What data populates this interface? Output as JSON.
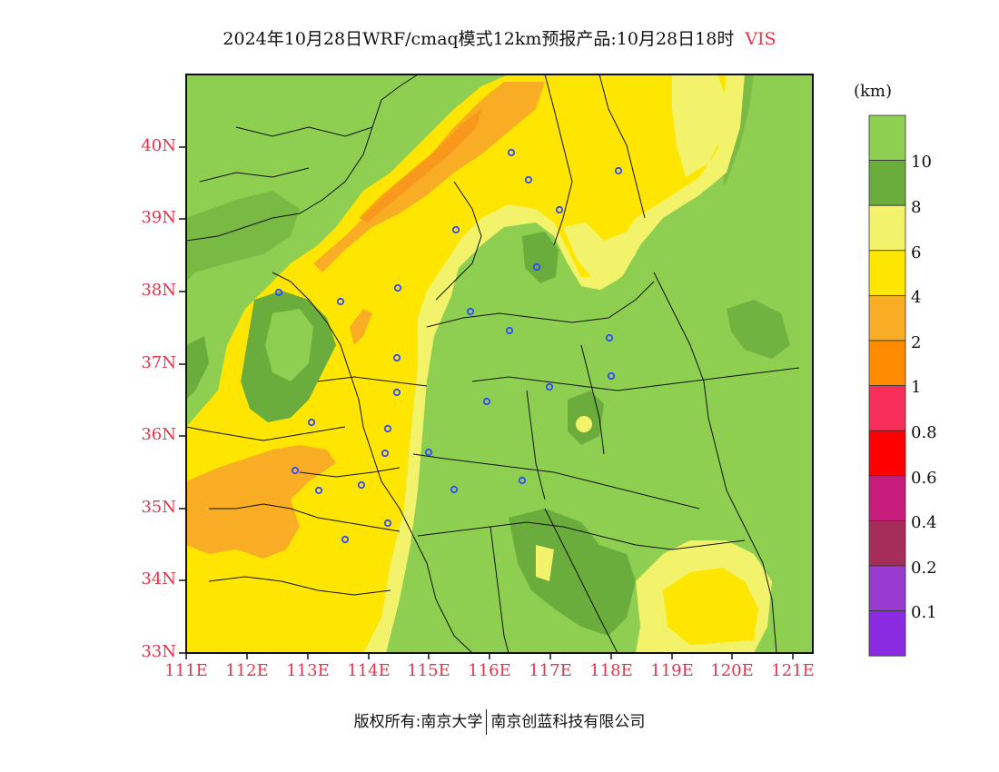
{
  "title": {
    "text": "2024年10月28日WRF/cmaq模式12km预报产品:10月28日18时",
    "variable": "VIS"
  },
  "axes": {
    "lat_labels": [
      "40N",
      "39N",
      "38N",
      "37N",
      "36N",
      "35N",
      "34N",
      "33N"
    ],
    "lon_labels": [
      "111E",
      "112E",
      "113E",
      "114E",
      "115E",
      "116E",
      "117E",
      "118E",
      "119E",
      "120E",
      "121E"
    ]
  },
  "colorbar": {
    "unit": "(km)",
    "levels": [
      "10",
      "8",
      "6",
      "4",
      "2",
      "1",
      "0.8",
      "0.6",
      "0.4",
      "0.2",
      "0.1"
    ],
    "colors": [
      "#8ece50",
      "#6aad3c",
      "#f2f36a",
      "#ffe600",
      "#f9ad24",
      "#ff8c00",
      "#f72f5a",
      "#ff0000",
      "#c81c7c",
      "#a62c5a",
      "#9a3bd0",
      "#8a2be2"
    ]
  },
  "legend_colors": {
    "over10": "#8ece50",
    "8to10": "#6aad3c",
    "6to8": "#f2f36a",
    "4to6": "#ffe600",
    "2to4": "#f9ad24",
    "1to2": "#ff8c00"
  },
  "station_color": "#2d4bff",
  "footer": {
    "left": "版权所有:南京大学",
    "right": "南京创蓝科技有限公司"
  }
}
